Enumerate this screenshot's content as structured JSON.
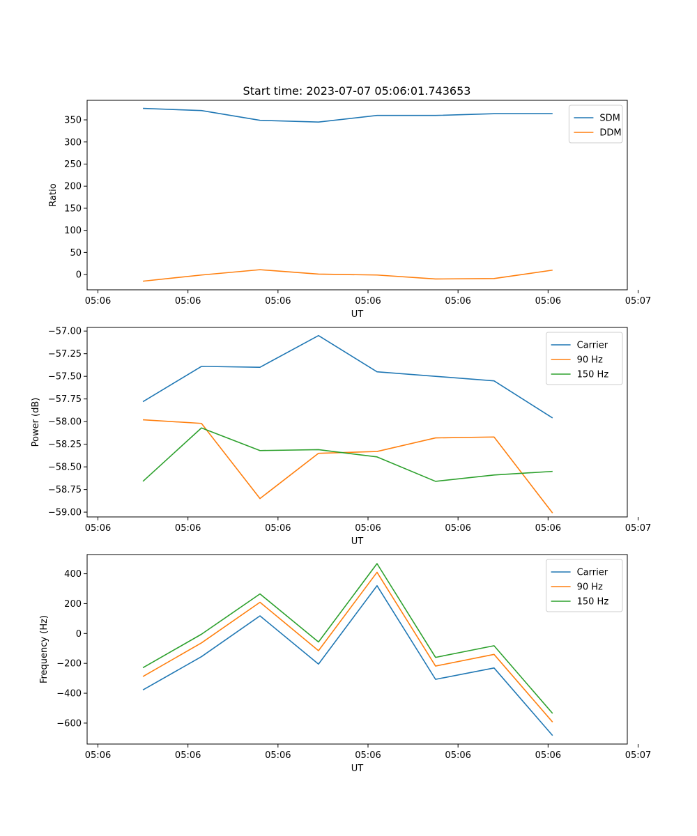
{
  "figure_title": "Start time: 2023-07-07 05:06:01.743653",
  "colors": {
    "blue": "#1f77b4",
    "orange": "#ff7f0e",
    "green": "#2ca02c"
  },
  "chart_data": [
    {
      "type": "line",
      "title": "Start time: 2023-07-07 05:06:01.743653",
      "xlabel": "UT",
      "ylabel": "Ratio",
      "x_tick_labels": [
        "05:06",
        "05:06",
        "05:06",
        "05:06",
        "05:06",
        "05:06",
        "05:07"
      ],
      "y_ticks": [
        0,
        50,
        100,
        150,
        200,
        250,
        300,
        350
      ],
      "y_tick_labels": [
        "0",
        "50",
        "100",
        "150",
        "200",
        "250",
        "300",
        "350"
      ],
      "x": [
        1.5,
        2.15,
        2.8,
        3.45,
        4.1,
        4.75,
        5.4,
        6.05
      ],
      "xlim": [
        0.88,
        6.88
      ],
      "ylim": [
        -34.5,
        394.2
      ],
      "legend_location": "upper right",
      "grid": false,
      "series": [
        {
          "name": "SDM",
          "color": "#1f77b4",
          "values": [
            376,
            371,
            349,
            345,
            360,
            360,
            364,
            364
          ]
        },
        {
          "name": "DDM",
          "color": "#ff7f0e",
          "values": [
            -15,
            -1,
            11,
            1,
            -1,
            -10,
            -9,
            10
          ]
        }
      ]
    },
    {
      "type": "line",
      "title": "",
      "xlabel": "UT",
      "ylabel": "Power (dB)",
      "x_tick_labels": [
        "05:06",
        "05:06",
        "05:06",
        "05:06",
        "05:06",
        "05:06",
        "05:07"
      ],
      "y_ticks": [
        -59.0,
        -58.75,
        -58.5,
        -58.25,
        -58.0,
        -57.75,
        -57.5,
        -57.25,
        -57.0
      ],
      "y_tick_labels": [
        "−59.00",
        "−58.75",
        "−58.50",
        "−58.25",
        "−58.00",
        "−57.75",
        "−57.50",
        "−57.25",
        "−57.00"
      ],
      "x": [
        1.5,
        2.15,
        2.8,
        3.45,
        4.1,
        4.75,
        5.4,
        6.05
      ],
      "xlim": [
        0.88,
        6.88
      ],
      "ylim": [
        -59.053,
        -56.96
      ],
      "legend_location": "upper right",
      "grid": false,
      "series": [
        {
          "name": "Carrier",
          "color": "#1f77b4",
          "values": [
            -57.78,
            -57.39,
            -57.4,
            -57.05,
            -57.45,
            -57.5,
            -57.55,
            -57.96
          ]
        },
        {
          "name": "90 Hz",
          "color": "#ff7f0e",
          "values": [
            -57.98,
            -58.02,
            -58.85,
            -58.35,
            -58.33,
            -58.18,
            -58.17,
            -59.01
          ]
        },
        {
          "name": "150 Hz",
          "color": "#2ca02c",
          "values": [
            -58.66,
            -58.07,
            -58.32,
            -58.31,
            -58.39,
            -58.66,
            -58.59,
            -58.55
          ]
        }
      ]
    },
    {
      "type": "line",
      "title": "",
      "xlabel": "UT",
      "ylabel": "Frequency (Hz)",
      "x_tick_labels": [
        "05:06",
        "05:06",
        "05:06",
        "05:06",
        "05:06",
        "05:06",
        "05:07"
      ],
      "y_ticks": [
        -600,
        -400,
        -200,
        0,
        200,
        400
      ],
      "y_tick_labels": [
        "−600",
        "−400",
        "−200",
        "0",
        "200",
        "400"
      ],
      "x": [
        1.5,
        2.15,
        2.8,
        3.45,
        4.1,
        4.75,
        5.4,
        6.05
      ],
      "xlim": [
        0.88,
        6.88
      ],
      "ylim": [
        -740.3,
        528.6
      ],
      "legend_location": "upper right",
      "grid": false,
      "series": [
        {
          "name": "Carrier",
          "color": "#1f77b4",
          "values": [
            -378,
            -155,
            118,
            -205,
            320,
            -307,
            -231,
            -683
          ]
        },
        {
          "name": "90 Hz",
          "color": "#ff7f0e",
          "values": [
            -288,
            -63,
            209,
            -115,
            410,
            -218,
            -140,
            -593
          ]
        },
        {
          "name": "150 Hz",
          "color": "#2ca02c",
          "values": [
            -229,
            -5,
            265,
            -57,
            468,
            -160,
            -82,
            -535
          ]
        }
      ]
    }
  ]
}
